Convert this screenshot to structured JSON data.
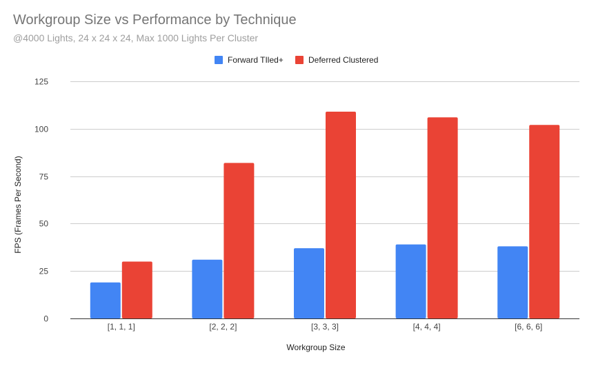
{
  "chart_data": {
    "type": "bar",
    "title": "Workgroup Size vs Performance by Technique",
    "subtitle": "@4000 Lights, 24 x 24 x 24, Max 1000 Lights Per Cluster",
    "xlabel": "Workgroup Size",
    "ylabel": "FPS (Frames Per Second)",
    "categories": [
      "[1, 1, 1]",
      "[2, 2, 2]",
      "[3, 3, 3]",
      "[4, 4, 4]",
      "[6, 6, 6]"
    ],
    "series": [
      {
        "name": "Forward TIled+",
        "color": "#4285f4",
        "values": [
          19,
          31,
          37,
          39,
          38
        ]
      },
      {
        "name": "Deferred Clustered",
        "color": "#ea4335",
        "values": [
          30,
          82,
          109,
          106,
          102
        ]
      }
    ],
    "ylim": [
      0,
      125
    ],
    "yticks": [
      0,
      25,
      50,
      75,
      100,
      125
    ],
    "grid": true,
    "legend_position": "top"
  }
}
